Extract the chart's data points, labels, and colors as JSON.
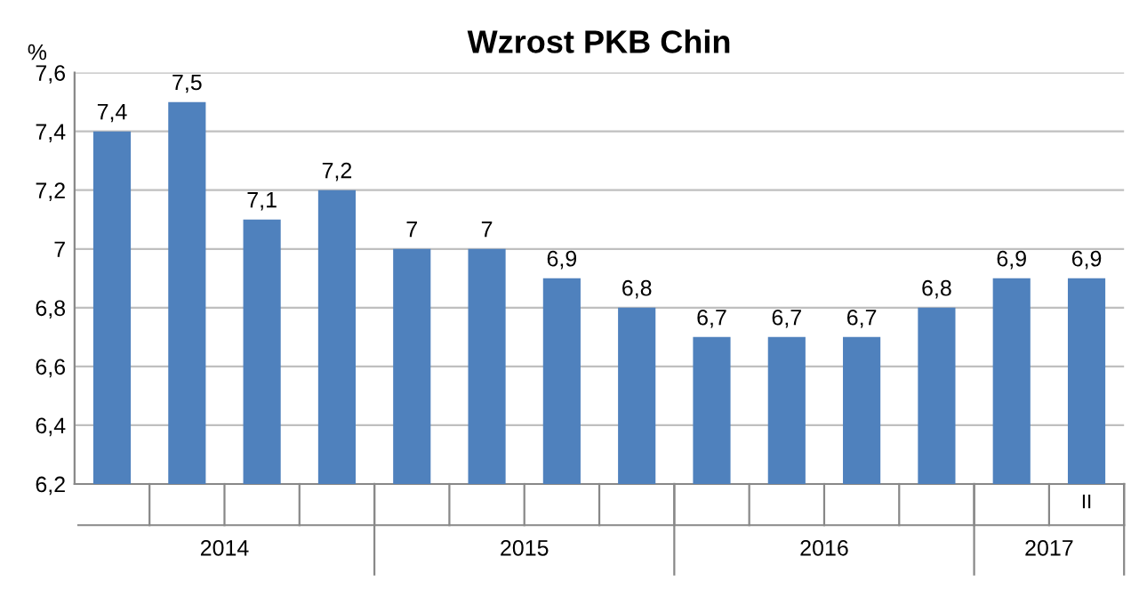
{
  "chart_data": {
    "type": "bar",
    "title": "Wzrost PKB Chin",
    "ylabel": "%",
    "categories": [
      null,
      null,
      null,
      null,
      null,
      null,
      null,
      null,
      null,
      null,
      null,
      null,
      null,
      "II"
    ],
    "values": [
      7.4,
      7.5,
      7.1,
      7.2,
      7.0,
      7.0,
      6.9,
      6.8,
      6.7,
      6.7,
      6.7,
      6.8,
      6.9,
      6.9
    ],
    "value_labels": [
      "7,4",
      "7,5",
      "7,1",
      "7,2",
      "7",
      "7",
      "6,9",
      "6,8",
      "6,7",
      "6,7",
      "6,7",
      "6,8",
      "6,9",
      "6,9"
    ],
    "color": "#4f81bd",
    "ylim": [
      6.2,
      7.6
    ],
    "yticks": [
      {
        "value": 6.2,
        "label": "6,2"
      },
      {
        "value": 6.4,
        "label": "6,4"
      },
      {
        "value": 6.6,
        "label": "6,6"
      },
      {
        "value": 6.8,
        "label": "6,8"
      },
      7,
      {
        "value": 7.2,
        "label": "7,2"
      },
      {
        "value": 7.4,
        "label": "7,4"
      },
      {
        "value": 7.6,
        "label": "7,6"
      }
    ],
    "grid": "y",
    "annotations": [
      "2014",
      "2015",
      "2016",
      "2017"
    ]
  }
}
